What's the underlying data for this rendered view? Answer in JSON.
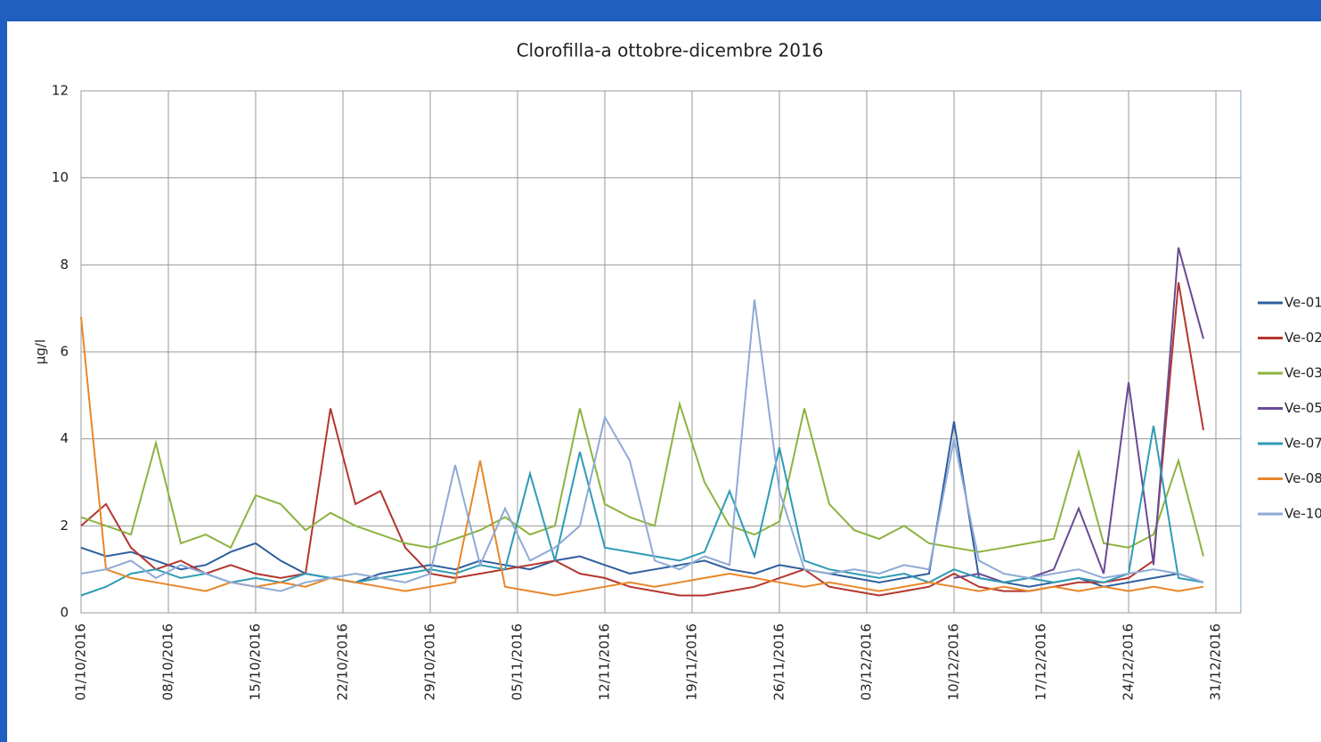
{
  "chart_data": {
    "type": "line",
    "title": "Clorofilla-a ottobre-dicembre 2016",
    "y_label": "µg/l",
    "x": [
      "2016-10-01",
      "2016-10-03",
      "2016-10-05",
      "2016-10-07",
      "2016-10-09",
      "2016-10-11",
      "2016-10-13",
      "2016-10-15",
      "2016-10-17",
      "2016-10-19",
      "2016-10-21",
      "2016-10-23",
      "2016-10-25",
      "2016-10-27",
      "2016-10-29",
      "2016-10-31",
      "2016-11-02",
      "2016-11-04",
      "2016-11-06",
      "2016-11-08",
      "2016-11-10",
      "2016-11-12",
      "2016-11-14",
      "2016-11-16",
      "2016-11-18",
      "2016-11-20",
      "2016-11-22",
      "2016-11-24",
      "2016-11-26",
      "2016-11-28",
      "2016-11-30",
      "2016-12-02",
      "2016-12-04",
      "2016-12-06",
      "2016-12-08",
      "2016-12-10",
      "2016-12-12",
      "2016-12-14",
      "2016-12-16",
      "2016-12-18",
      "2016-12-20",
      "2016-12-22",
      "2016-12-24",
      "2016-12-26",
      "2016-12-28",
      "2016-12-30"
    ],
    "series": [
      {
        "name": "Ve-01",
        "color": "#2f5f9e",
        "values": [
          1.5,
          1.3,
          1.4,
          1.2,
          1.0,
          1.1,
          1.4,
          1.6,
          1.2,
          0.9,
          0.8,
          0.7,
          0.9,
          1.0,
          1.1,
          1.0,
          1.2,
          1.1,
          1.0,
          1.2,
          1.3,
          1.1,
          0.9,
          1.0,
          1.1,
          1.2,
          1.0,
          0.9,
          1.1,
          1.0,
          0.9,
          0.8,
          0.7,
          0.8,
          0.9,
          4.4,
          0.8,
          0.7,
          0.6,
          0.7,
          0.8,
          0.6,
          0.7,
          0.8,
          0.9,
          0.7
        ]
      },
      {
        "name": "Ve-02",
        "color": "#b3362f",
        "values": [
          2.0,
          2.5,
          1.5,
          1.0,
          1.2,
          0.9,
          1.1,
          0.9,
          0.8,
          0.9,
          4.7,
          2.5,
          2.8,
          1.5,
          0.9,
          0.8,
          0.9,
          1.0,
          1.1,
          1.2,
          0.9,
          0.8,
          0.6,
          0.5,
          0.4,
          0.4,
          0.5,
          0.6,
          0.8,
          1.0,
          0.6,
          0.5,
          0.4,
          0.5,
          0.6,
          0.9,
          0.6,
          0.5,
          0.5,
          0.6,
          0.7,
          0.7,
          0.8,
          1.2,
          7.6,
          4.2
        ]
      },
      {
        "name": "Ve-03",
        "color": "#8cb33f",
        "values": [
          2.2,
          2.0,
          1.8,
          3.9,
          1.6,
          1.8,
          1.5,
          2.7,
          2.5,
          1.9,
          2.3,
          2.0,
          1.8,
          1.6,
          1.5,
          1.7,
          1.9,
          2.2,
          1.8,
          2.0,
          4.7,
          2.5,
          2.2,
          2.0,
          4.8,
          3.0,
          2.0,
          1.8,
          2.1,
          4.7,
          2.5,
          1.9,
          1.7,
          2.0,
          1.6,
          1.5,
          1.4,
          1.5,
          1.6,
          1.7,
          3.7,
          1.6,
          1.5,
          1.8,
          3.5,
          1.3
        ]
      },
      {
        "name": "Ve-05",
        "color": "#6a4a94",
        "values": [
          null,
          null,
          null,
          null,
          null,
          null,
          null,
          null,
          null,
          null,
          null,
          null,
          null,
          null,
          null,
          null,
          null,
          null,
          null,
          null,
          null,
          null,
          null,
          null,
          null,
          null,
          null,
          null,
          null,
          null,
          null,
          null,
          null,
          null,
          null,
          0.8,
          0.9,
          0.7,
          0.8,
          1.0,
          2.4,
          0.9,
          5.3,
          1.1,
          8.4,
          6.3
        ]
      },
      {
        "name": "Ve-07",
        "color": "#2e9bb5",
        "values": [
          0.4,
          0.6,
          0.9,
          1.0,
          0.8,
          0.9,
          0.7,
          0.8,
          0.7,
          0.9,
          0.8,
          0.7,
          0.8,
          0.9,
          1.0,
          0.9,
          1.1,
          1.0,
          3.2,
          1.2,
          3.7,
          1.5,
          1.4,
          1.3,
          1.2,
          1.4,
          2.8,
          1.3,
          3.8,
          1.2,
          1.0,
          0.9,
          0.8,
          0.9,
          0.7,
          1.0,
          0.8,
          0.7,
          0.8,
          0.7,
          0.8,
          0.7,
          0.9,
          4.3,
          0.8,
          0.7
        ]
      },
      {
        "name": "Ve-08",
        "color": "#e8862a",
        "values": [
          6.8,
          1.0,
          0.8,
          0.7,
          0.6,
          0.5,
          0.7,
          0.6,
          0.7,
          0.6,
          0.8,
          0.7,
          0.6,
          0.5,
          0.6,
          0.7,
          3.5,
          0.6,
          0.5,
          0.4,
          0.5,
          0.6,
          0.7,
          0.6,
          0.7,
          0.8,
          0.9,
          0.8,
          0.7,
          0.6,
          0.7,
          0.6,
          0.5,
          0.6,
          0.7,
          0.6,
          0.5,
          0.6,
          0.5,
          0.6,
          0.5,
          0.6,
          0.5,
          0.6,
          0.5,
          0.6
        ]
      },
      {
        "name": "Ve-10",
        "color": "#8eaad6",
        "values": [
          0.9,
          1.0,
          1.2,
          0.8,
          1.1,
          0.9,
          0.7,
          0.6,
          0.5,
          0.7,
          0.8,
          0.9,
          0.8,
          0.7,
          0.9,
          3.4,
          1.1,
          2.4,
          1.2,
          1.5,
          2.0,
          4.5,
          3.5,
          1.2,
          1.0,
          1.3,
          1.1,
          7.2,
          2.8,
          1.0,
          0.9,
          1.0,
          0.9,
          1.1,
          1.0,
          4.0,
          1.2,
          0.9,
          0.8,
          0.9,
          1.0,
          0.8,
          0.9,
          1.0,
          0.9,
          0.7
        ]
      }
    ],
    "xlim": [
      "2016-10-01",
      "2017-01-02"
    ],
    "xticks": [
      {
        "value": "2016-10-01",
        "label": "01/10/2016"
      },
      {
        "value": "2016-10-08",
        "label": "08/10/2016"
      },
      {
        "value": "2016-10-15",
        "label": "15/10/2016"
      },
      {
        "value": "2016-10-22",
        "label": "22/10/2016"
      },
      {
        "value": "2016-10-29",
        "label": "29/10/2016"
      },
      {
        "value": "2016-11-05",
        "label": "05/11/2016"
      },
      {
        "value": "2016-11-12",
        "label": "12/11/2016"
      },
      {
        "value": "2016-11-19",
        "label": "19/11/2016"
      },
      {
        "value": "2016-11-26",
        "label": "26/11/2016"
      },
      {
        "value": "2016-12-03",
        "label": "03/12/2016"
      },
      {
        "value": "2016-12-10",
        "label": "10/12/2016"
      },
      {
        "value": "2016-12-17",
        "label": "17/12/2016"
      },
      {
        "value": "2016-12-24",
        "label": "24/12/2016"
      },
      {
        "value": "2016-12-31",
        "label": "31/12/2016"
      }
    ],
    "ylim": [
      0,
      12
    ],
    "yticks": [
      0,
      2,
      4,
      6,
      8,
      10,
      12
    ],
    "grid": true,
    "legend": "right"
  }
}
